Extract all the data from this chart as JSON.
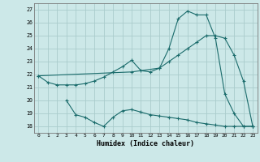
{
  "xlabel": "Humidex (Indice chaleur)",
  "bg_color": "#cce8e8",
  "grid_color": "#aacccc",
  "line_color": "#1a6b6b",
  "xlim": [
    -0.5,
    23.5
  ],
  "ylim": [
    17.5,
    27.5
  ],
  "yticks": [
    18,
    19,
    20,
    21,
    22,
    23,
    24,
    25,
    26,
    27
  ],
  "xticks": [
    0,
    1,
    2,
    3,
    4,
    5,
    6,
    7,
    8,
    9,
    10,
    11,
    12,
    13,
    14,
    15,
    16,
    17,
    18,
    19,
    20,
    21,
    22,
    23
  ],
  "line1_x": [
    0,
    1,
    2,
    3,
    4,
    5,
    6,
    7,
    8,
    9,
    10,
    11,
    12,
    13,
    14,
    15,
    16,
    17,
    18,
    19,
    20,
    21,
    22,
    23
  ],
  "line1_y": [
    21.9,
    21.4,
    21.2,
    21.2,
    21.2,
    21.3,
    21.5,
    21.8,
    22.2,
    22.6,
    23.1,
    22.3,
    22.2,
    22.5,
    24.0,
    26.3,
    26.9,
    26.6,
    26.6,
    24.8,
    20.5,
    19.0,
    18.0,
    18.0
  ],
  "line2_x": [
    0,
    10,
    13,
    14,
    15,
    16,
    17,
    18,
    19,
    20,
    21,
    22,
    23
  ],
  "line2_y": [
    21.9,
    22.2,
    22.5,
    23.0,
    23.5,
    24.0,
    24.5,
    25.0,
    25.0,
    24.8,
    23.5,
    21.5,
    18.0
  ],
  "line3_x": [
    3,
    4,
    5,
    6,
    7,
    8,
    9,
    10,
    11,
    12,
    13,
    14,
    15,
    16,
    17,
    18,
    19,
    20,
    21,
    22,
    23
  ],
  "line3_y": [
    20.0,
    18.9,
    18.7,
    18.3,
    18.0,
    18.7,
    19.2,
    19.3,
    19.1,
    18.9,
    18.8,
    18.7,
    18.6,
    18.5,
    18.3,
    18.2,
    18.1,
    18.0,
    18.0,
    18.0,
    18.0
  ]
}
